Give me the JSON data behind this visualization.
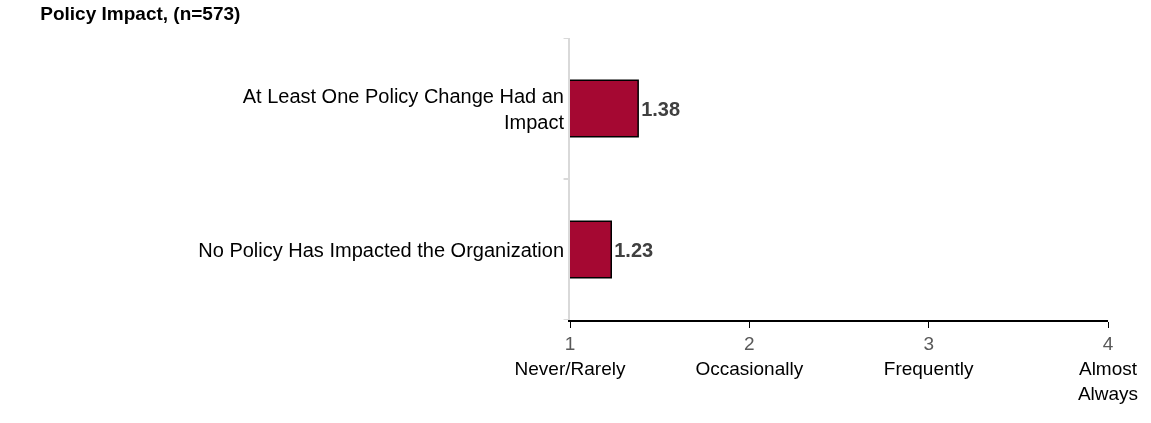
{
  "chart_data": {
    "type": "bar",
    "orientation": "horizontal",
    "title": "Policy Impact, (n=573)",
    "categories": [
      "At Least One Policy Change Had an Impact",
      "No Policy Has Impacted the Organization"
    ],
    "values": [
      1.38,
      1.23
    ],
    "color": "#a50832",
    "data_labels": true,
    "xlim": [
      1,
      4
    ],
    "xticks": [
      {
        "value": 1,
        "label": "1\nNever/Rarely"
      },
      {
        "value": 2,
        "label": "2\nOccasionally"
      },
      {
        "value": 3,
        "label": "3\nFrequently"
      },
      {
        "value": 4,
        "label": "4\nAlmost Always"
      }
    ],
    "grid": false
  }
}
